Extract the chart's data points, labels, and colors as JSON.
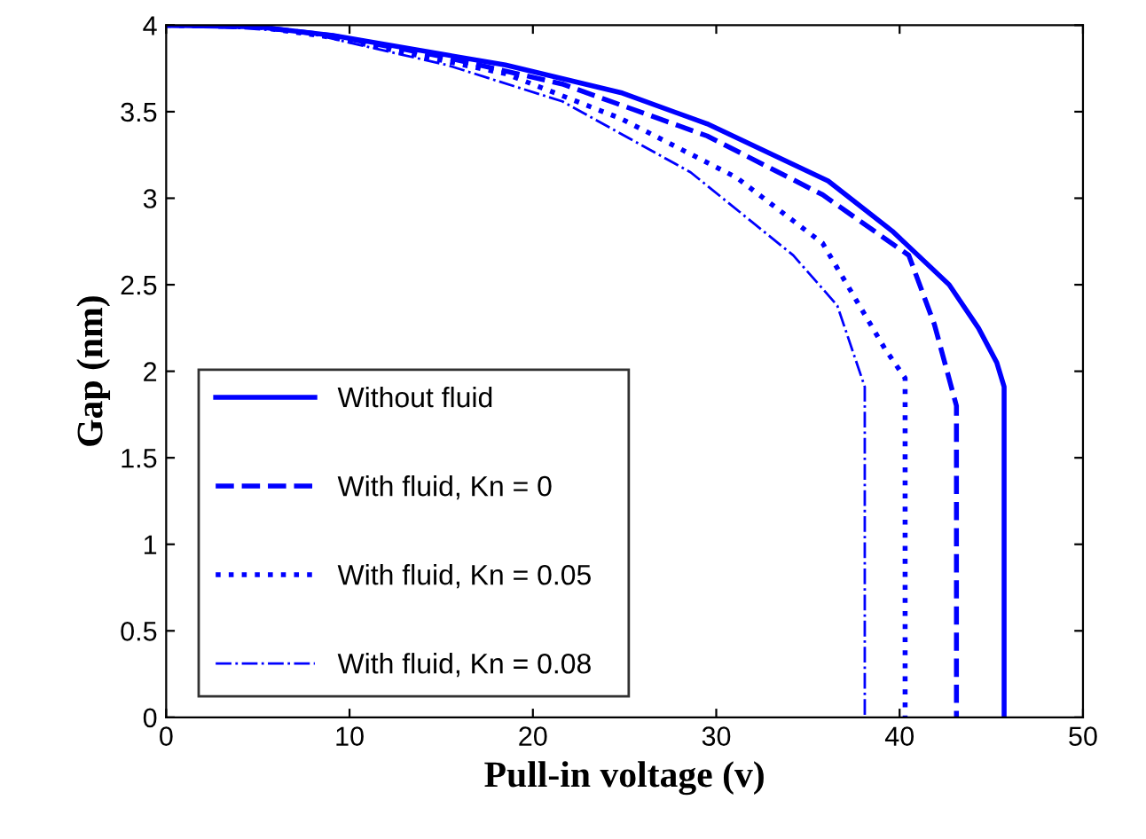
{
  "chart_data": {
    "type": "line",
    "xlabel": "Pull-in voltage (v)",
    "ylabel": "Gap (nm)",
    "xlim": [
      0,
      50
    ],
    "ylim": [
      0,
      4
    ],
    "xticks": [
      0,
      10,
      20,
      30,
      40,
      50
    ],
    "yticks": [
      0,
      0.5,
      1,
      1.5,
      2,
      2.5,
      3,
      3.5,
      4
    ],
    "legend": "left",
    "grid": false,
    "series": [
      {
        "name": "Without fluid",
        "color": "#0000ff",
        "line_style": "solid",
        "x": [
          0,
          5,
          9.1,
          18.5,
          24.8,
          29.5,
          36.1,
          39.6,
          42.7,
          44.3,
          45.3,
          45.7,
          45.7
        ],
        "values": [
          4,
          3.99,
          3.94,
          3.77,
          3.61,
          3.43,
          3.1,
          2.81,
          2.5,
          2.25,
          2.05,
          1.91,
          0
        ]
      },
      {
        "name": "With fluid, Kn = 0",
        "color": "#0000ff",
        "line_style": "dashed",
        "x": [
          0,
          5,
          9,
          15,
          21.6,
          29.5,
          35.8,
          40.5,
          41.9,
          43.1,
          43.1
        ],
        "values": [
          4,
          3.99,
          3.94,
          3.82,
          3.66,
          3.36,
          3.02,
          2.67,
          2.27,
          1.8,
          0
        ]
      },
      {
        "name": "With fluid, Kn = 0.05",
        "color": "#0000ff",
        "line_style": "dotted",
        "x": [
          0,
          5,
          9,
          18.5,
          24.8,
          31.1,
          35.8,
          39.2,
          40.3,
          40.3
        ],
        "values": [
          4,
          3.99,
          3.93,
          3.72,
          3.46,
          3.12,
          2.74,
          2.13,
          1.96,
          0
        ]
      },
      {
        "name": "With fluid, Kn = 0.08",
        "color": "#0000ff",
        "line_style": "dashdot",
        "x": [
          0,
          3,
          7.5,
          15.3,
          21.6,
          28.6,
          34.2,
          36.6,
          38.1,
          38.1
        ],
        "values": [
          4,
          3.99,
          3.96,
          3.77,
          3.56,
          3.15,
          2.67,
          2.38,
          1.91,
          0
        ]
      }
    ]
  }
}
